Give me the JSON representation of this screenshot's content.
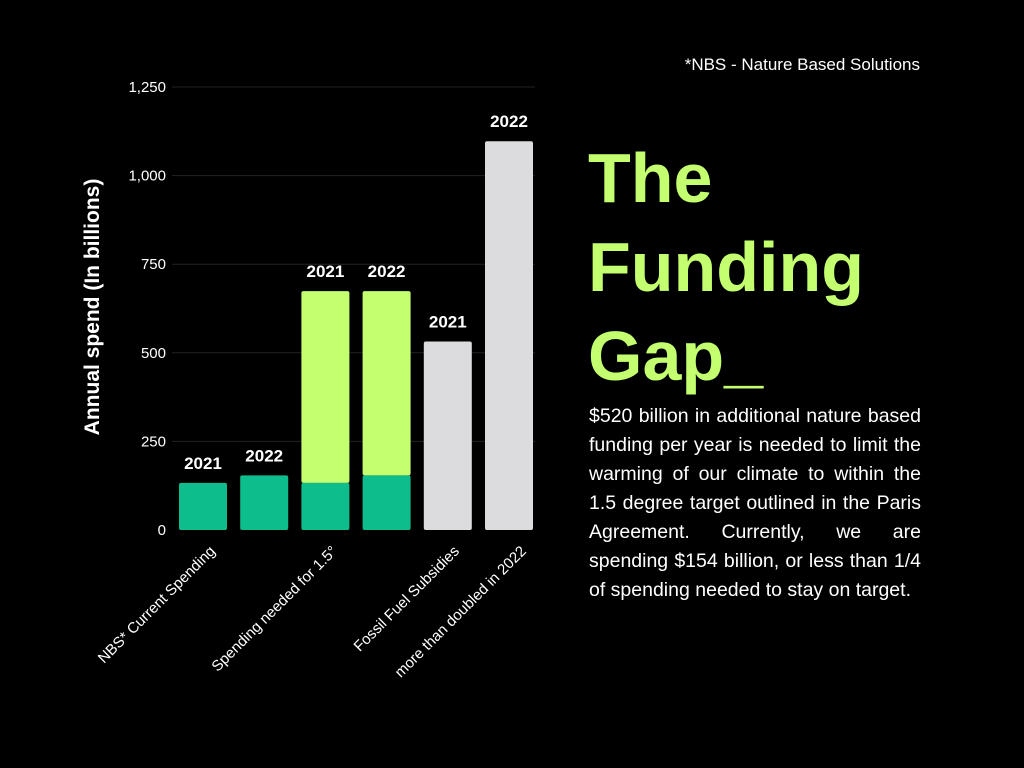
{
  "chart_data": {
    "type": "bar",
    "title": "The Funding Gap_",
    "ylabel": "Annual spend (In billions)",
    "xlabel": "",
    "ylim": [
      0,
      1250
    ],
    "yticks": [
      0,
      250,
      500,
      750,
      1000,
      1250
    ],
    "ytick_labels": [
      "0",
      "250",
      "500",
      "750",
      "1,000",
      "1,250"
    ],
    "grid": true,
    "categories": [
      "NBS* Current Spending",
      "Spending needed for 1.5°",
      "Fossil Fuel Subsidies more than doubled in 2022"
    ],
    "category_labels": [
      "NBS* Current Spending",
      "Spending needed for 1.5°",
      "Fossil Fuel Subsidies",
      "more than doubled in 2022"
    ],
    "bars": [
      {
        "group": "NBS* Current Spending",
        "year": "2021",
        "segments": [
          {
            "series": "NBS current",
            "value": 133
          }
        ]
      },
      {
        "group": "NBS* Current Spending",
        "year": "2022",
        "segments": [
          {
            "series": "NBS current",
            "value": 154
          }
        ]
      },
      {
        "group": "Spending needed for 1.5°",
        "year": "2021",
        "segments": [
          {
            "series": "NBS current",
            "value": 133
          },
          {
            "series": "Additional needed",
            "value": 541
          }
        ]
      },
      {
        "group": "Spending needed for 1.5°",
        "year": "2022",
        "segments": [
          {
            "series": "NBS current",
            "value": 154
          },
          {
            "series": "Additional needed",
            "value": 520
          }
        ]
      },
      {
        "group": "Fossil Fuel Subsidies",
        "year": "2021",
        "segments": [
          {
            "series": "Fossil fuel subsidies",
            "value": 532
          }
        ]
      },
      {
        "group": "Fossil Fuel Subsidies",
        "year": "2022",
        "segments": [
          {
            "series": "Fossil fuel subsidies",
            "value": 1097
          }
        ]
      }
    ],
    "colors": {
      "NBS current": "#0dbd8b",
      "Additional needed": "#c3ff6e",
      "Fossil fuel subsidies": "#dcdbdd"
    }
  },
  "footnote": "*NBS - Nature Based Solutions",
  "title_lines": [
    "The",
    "Funding",
    "Gap_"
  ],
  "description": "$520 billion in additional nature based funding per year is needed to limit the warming of our climate to within the 1.5 degree target outlined in the Paris Agreement. Currently, we are spending $154 billion, or less than 1/4 of spending needed to stay on target.",
  "colors": {
    "background": "#000000",
    "accent": "#c3ff6e",
    "text": "#ffffff",
    "grid": "#222222"
  }
}
